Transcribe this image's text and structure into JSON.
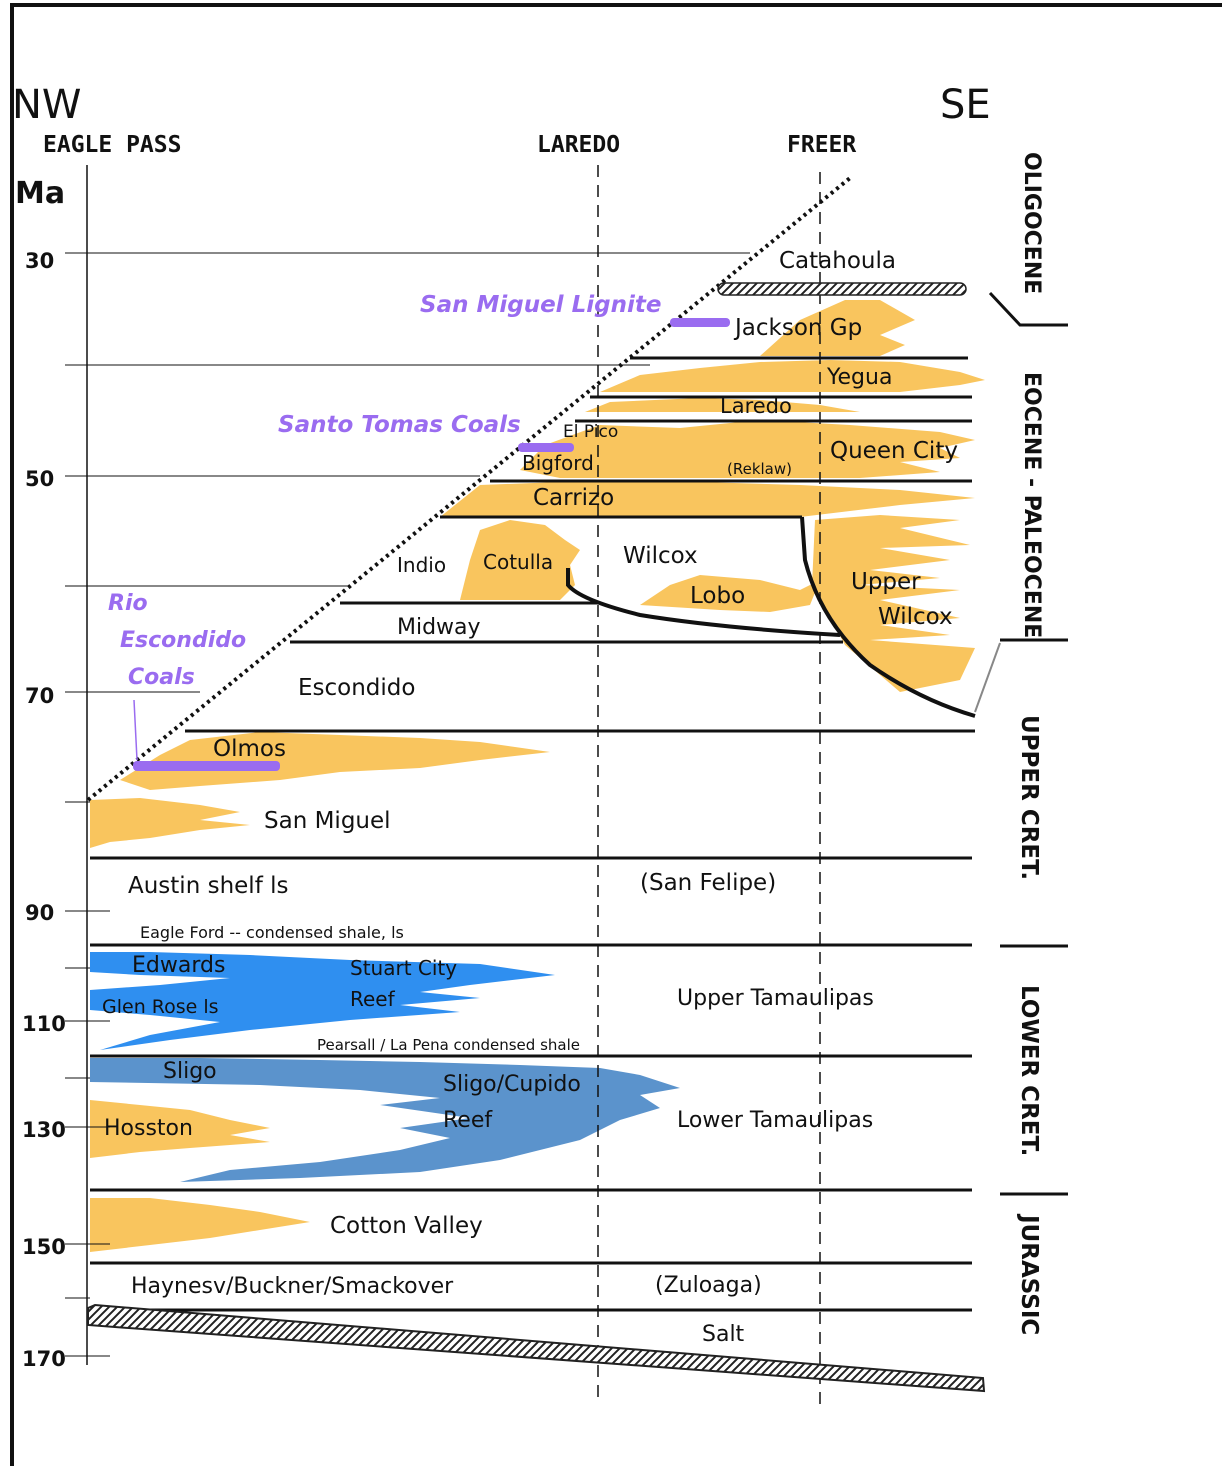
{
  "direction": {
    "left": "NW",
    "right": "SE"
  },
  "wells": {
    "left": "EAGLE PASS",
    "middle": "LAREDO",
    "right": "FREER"
  },
  "axis": {
    "label": "Ma",
    "ticks": [
      "30",
      "50",
      "70",
      "90",
      "110",
      "130",
      "150",
      "170"
    ]
  },
  "eras": {
    "oligocene": "OLIGOCENE",
    "eocene_paleocene": "EOCENE - PALEOCENE",
    "upper_cret": "UPPER CRET.",
    "lower_cret": "LOWER CRET.",
    "jurassic": "JURASSIC"
  },
  "coals": {
    "san_miguel_lignite": "San Miguel Lignite",
    "santo_tomas": "Santo Tomas Coals",
    "rio": "Rio",
    "escondido": "Escondido",
    "coals": "Coals"
  },
  "formations": {
    "catahoula": "Catahoula",
    "jackson": "Jackson Gp",
    "yegua": "Yegua",
    "laredo": "Laredo",
    "el_pico": "El Pico",
    "queen_city": "Queen City",
    "bigford": "Bigford",
    "reklaw": "(Reklaw)",
    "carrizo": "Carrizo",
    "indio": "Indio",
    "cotulla": "Cotulla",
    "wilcox": "Wilcox",
    "lobo": "Lobo",
    "upper": "Upper",
    "wilcox2": "Wilcox",
    "midway": "Midway",
    "escondido_fm": "Escondido",
    "olmos": "Olmos",
    "san_miguel": "San Miguel",
    "austin": "Austin shelf ls",
    "san_felipe": "(San Felipe)",
    "eagle_ford": "Eagle Ford -- condensed shale, ls",
    "edwards": "Edwards",
    "stuart_city": "Stuart City",
    "reef1": "Reef",
    "glen_rose": "Glen Rose ls",
    "upper_tamaulipas": "Upper Tamaulipas",
    "pearsall": "Pearsall / La Pena condensed shale",
    "sligo": "Sligo",
    "sligo_cupido": "Sligo/Cupido",
    "reef2": "Reef",
    "hosston": "Hosston",
    "lower_tamaulipas": "Lower Tamaulipas",
    "cotton_valley": "Cotton Valley",
    "haynesville": "Haynesv/Buckner/Smackover",
    "zuloaga": "(Zuloaga)",
    "salt": "Salt"
  },
  "colors": {
    "sand": "#f9c55e",
    "carbonate_light": "#2f8ff0",
    "carbonate_dark": "#5b93cc",
    "coal": "#9a6cf0",
    "line": "#111111"
  }
}
